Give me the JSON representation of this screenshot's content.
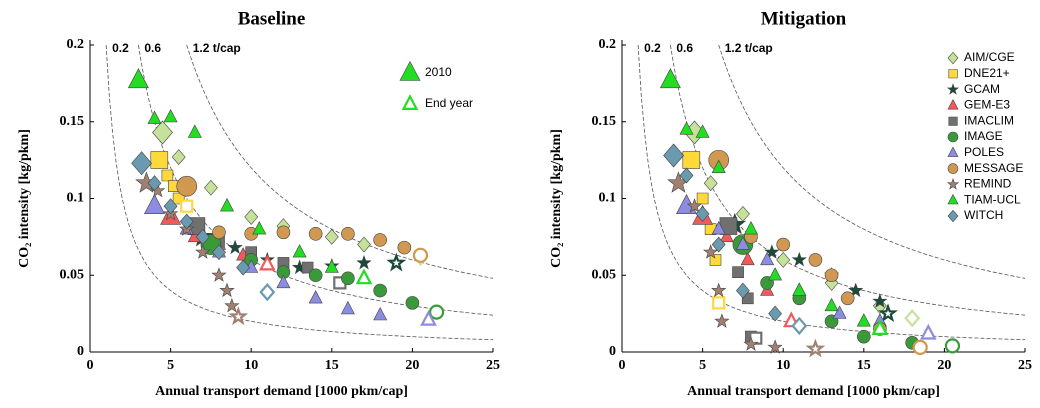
{
  "chart_data": [
    {
      "type": "scatter",
      "title": "Baseline",
      "x_label": "Annual transport demand [1000 pkm/cap]",
      "y_label": "CO₂ intensity [kg/pkm]",
      "xlim": [
        0,
        25
      ],
      "xticks": [
        0,
        5,
        10,
        15,
        20,
        25
      ],
      "ylim": [
        0,
        0.2
      ],
      "yticks": [
        0,
        0.05,
        0.1,
        0.15,
        0.2
      ],
      "isolines": [
        0.2,
        0.6,
        {
          "value": 1.2,
          "label": "1.2 t/cap"
        }
      ],
      "key_labels": [
        "2010",
        "End year"
      ],
      "key_color": "#22dd22",
      "series": [
        {
          "color": "#c6e29a",
          "marker": "diamond",
          "x": [
            4.5,
            5.5,
            7.5,
            10,
            12,
            15,
            17,
            20.5
          ],
          "y": [
            0.143,
            0.127,
            0.107,
            0.088,
            0.082,
            0.075,
            0.07,
            0.062
          ]
        },
        {
          "color": "#ffd83a",
          "marker": "square",
          "x": [
            4.3,
            4.8,
            5.2,
            5.5,
            6
          ],
          "y": [
            0.125,
            0.115,
            0.108,
            0.1,
            0.095
          ]
        },
        {
          "color": "#1a4a3a",
          "marker": "star",
          "x": [
            7,
            9,
            11,
            13,
            15,
            17,
            19
          ],
          "y": [
            0.075,
            0.068,
            0.06,
            0.055,
            0.056,
            0.058,
            0.058
          ]
        },
        {
          "color": "#f05a5a",
          "marker": "triangle",
          "x": [
            5,
            6.5,
            8,
            9.5,
            11
          ],
          "y": [
            0.088,
            0.075,
            0.07,
            0.063,
            0.057
          ]
        },
        {
          "color": "#707070",
          "marker": "square",
          "x": [
            6.6,
            8,
            10,
            12,
            13.5,
            15.5
          ],
          "y": [
            0.082,
            0.072,
            0.065,
            0.058,
            0.055,
            0.045
          ]
        },
        {
          "color": "#3a9a3a",
          "marker": "circle",
          "x": [
            7.5,
            10,
            12,
            14,
            16,
            18,
            20,
            21.5
          ],
          "y": [
            0.07,
            0.06,
            0.052,
            0.05,
            0.048,
            0.04,
            0.032,
            0.026
          ]
        },
        {
          "color": "#8c8ce0",
          "marker": "triangle",
          "x": [
            4,
            6,
            8,
            10,
            12,
            14,
            16,
            18,
            21
          ],
          "y": [
            0.095,
            0.08,
            0.065,
            0.055,
            0.045,
            0.035,
            0.028,
            0.024,
            0.021
          ]
        },
        {
          "color": "#d09850",
          "marker": "circle",
          "x": [
            6,
            8,
            10,
            12,
            14,
            16,
            18,
            19.5,
            20.5
          ],
          "y": [
            0.108,
            0.078,
            0.077,
            0.078,
            0.077,
            0.077,
            0.073,
            0.068,
            0.063
          ]
        },
        {
          "color": "#a08070",
          "marker": "star",
          "x": [
            3.5,
            4.2,
            5,
            6,
            7,
            8,
            8.5,
            8.8,
            9.2
          ],
          "y": [
            0.11,
            0.105,
            0.09,
            0.08,
            0.065,
            0.05,
            0.04,
            0.03,
            0.023
          ]
        },
        {
          "color": "#22dd22",
          "marker": "triangle",
          "x": [
            3,
            4,
            5,
            6.5,
            8.5,
            10.5,
            13,
            15,
            17
          ],
          "y": [
            0.177,
            0.152,
            0.153,
            0.143,
            0.095,
            0.08,
            0.065,
            0.055,
            0.048
          ]
        },
        {
          "color": "#6a9ab0",
          "marker": "diamond",
          "x": [
            3.2,
            4,
            5,
            6,
            7,
            8,
            9.5,
            11
          ],
          "y": [
            0.123,
            0.11,
            0.095,
            0.085,
            0.075,
            0.065,
            0.055,
            0.039
          ]
        }
      ]
    },
    {
      "type": "scatter",
      "title": "Mitigation",
      "x_label": "Annual transport demand [1000 pkm/cap]",
      "y_label": "CO₂ intensity [kg/pkm]",
      "xlim": [
        0,
        25
      ],
      "xticks": [
        0,
        5,
        10,
        15,
        20,
        25
      ],
      "ylim": [
        0,
        0.2
      ],
      "yticks": [
        0,
        0.05,
        0.1,
        0.15,
        0.2
      ],
      "isolines": [
        0.2,
        0.6,
        {
          "value": 1.2,
          "label": "1.2 t/cap"
        }
      ],
      "series": [
        {
          "name": "AIM/CGE",
          "color": "#c6e29a",
          "marker": "diamond",
          "x": [
            4.5,
            5.5,
            7.5,
            10,
            13,
            16,
            18
          ],
          "y": [
            0.143,
            0.11,
            0.09,
            0.06,
            0.045,
            0.03,
            0.022
          ]
        },
        {
          "name": "DNE21+",
          "color": "#ffd83a",
          "marker": "square",
          "x": [
            4.3,
            5,
            5.5,
            5.8,
            6
          ],
          "y": [
            0.125,
            0.1,
            0.08,
            0.06,
            0.032
          ]
        },
        {
          "name": "GCAM",
          "color": "#1a4a3a",
          "marker": "star",
          "x": [
            7,
            9.3,
            11,
            13,
            14.5,
            16,
            16.5
          ],
          "y": [
            0.083,
            0.065,
            0.06,
            0.05,
            0.04,
            0.033,
            0.025
          ]
        },
        {
          "name": "GEM-E3",
          "color": "#f05a5a",
          "marker": "triangle",
          "x": [
            5,
            6.5,
            7.8,
            9,
            10.5
          ],
          "y": [
            0.088,
            0.075,
            0.06,
            0.04,
            0.02
          ]
        },
        {
          "name": "IMACLIM",
          "color": "#707070",
          "marker": "square",
          "x": [
            6.6,
            7.2,
            7.8,
            8,
            8.3
          ],
          "y": [
            0.082,
            0.052,
            0.035,
            0.01,
            0.009
          ]
        },
        {
          "name": "IMAGE",
          "color": "#3a9a3a",
          "marker": "circle",
          "x": [
            7.5,
            9,
            11,
            13,
            15,
            18,
            20.5
          ],
          "y": [
            0.07,
            0.045,
            0.035,
            0.02,
            0.01,
            0.006,
            0.004
          ]
        },
        {
          "name": "POLES",
          "color": "#8c8ce0",
          "marker": "triangle",
          "x": [
            4,
            6,
            7.5,
            9,
            11,
            13.5,
            16,
            19
          ],
          "y": [
            0.095,
            0.08,
            0.07,
            0.06,
            0.04,
            0.025,
            0.02,
            0.012
          ]
        },
        {
          "name": "MESSAGE",
          "color": "#d09850",
          "marker": "circle",
          "x": [
            6,
            8,
            10,
            12,
            13,
            14,
            16,
            18.5
          ],
          "y": [
            0.125,
            0.075,
            0.07,
            0.06,
            0.05,
            0.035,
            0.015,
            0.003
          ]
        },
        {
          "name": "REMIND",
          "color": "#a08070",
          "marker": "star",
          "x": [
            3.5,
            4.5,
            5.5,
            6,
            6.2,
            8,
            9.5,
            12
          ],
          "y": [
            0.11,
            0.095,
            0.065,
            0.04,
            0.02,
            0.005,
            0.003,
            0.002
          ]
        },
        {
          "name": "TIAM-UCL",
          "color": "#22dd22",
          "marker": "triangle",
          "x": [
            3,
            4,
            5,
            6,
            8,
            9.5,
            11,
            13,
            15,
            16
          ],
          "y": [
            0.177,
            0.145,
            0.143,
            0.12,
            0.08,
            0.05,
            0.04,
            0.03,
            0.02,
            0.015
          ]
        },
        {
          "name": "WITCH",
          "color": "#6a9ab0",
          "marker": "diamond",
          "x": [
            3.2,
            4,
            5,
            6,
            7.5,
            9.5,
            11
          ],
          "y": [
            0.128,
            0.115,
            0.09,
            0.07,
            0.04,
            0.025,
            0.017
          ]
        }
      ]
    }
  ]
}
